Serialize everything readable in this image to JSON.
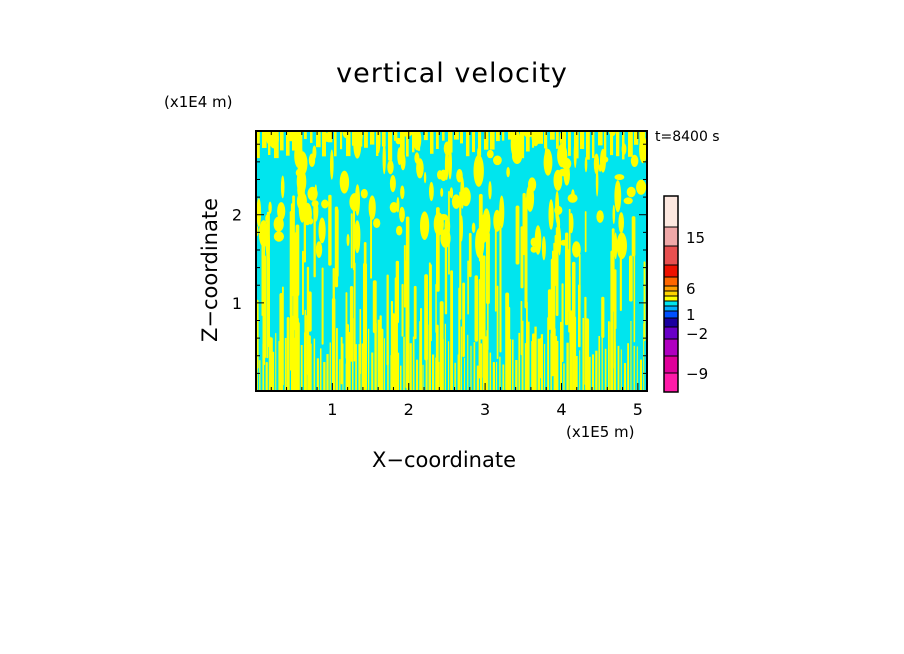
{
  "colors": {
    "background": "#ffffff",
    "positive_band": "#ffff00",
    "negative_band": "#00e5ee",
    "axis": "#000000"
  },
  "chart_data": {
    "type": "heatmap",
    "title": "vertical velocity",
    "xlabel": "X−coordinate",
    "ylabel": "Z−coordinate",
    "x_unit_label": "(x1E5 m)",
    "y_unit_label": "(x1E4 m)",
    "annotation": "t=8400 s",
    "xlim": [
      0,
      5.12
    ],
    "ylim": [
      0,
      2.95
    ],
    "x_ticks": [
      1,
      2,
      3,
      4,
      5
    ],
    "x_tick_labels": [
      "1",
      "2",
      "3",
      "4",
      "5"
    ],
    "y_ticks": [
      1,
      2
    ],
    "y_tick_labels": [
      "1",
      "2"
    ],
    "field_description": "Dominant cyan (slightly negative) field with dense yellow (slightly positive) vertical plumes, narrower near the surface",
    "colorbar": {
      "bands": [
        {
          "color": "#ff1aa8"
        },
        {
          "color": "#e0009a"
        },
        {
          "color": "#b000c0"
        },
        {
          "color": "#6a00c8"
        },
        {
          "color": "#1a00a0"
        },
        {
          "color": "#0050ff"
        },
        {
          "color": "#00b0ff"
        },
        {
          "color": "#00e5ee"
        },
        {
          "color": "#ffff00"
        },
        {
          "color": "#ffd400"
        },
        {
          "color": "#ffa000"
        },
        {
          "color": "#ff6600"
        },
        {
          "color": "#ee1100"
        },
        {
          "color": "#e85050"
        },
        {
          "color": "#f0a8a8"
        },
        {
          "color": "#fde8e0"
        }
      ],
      "tick_labels": [
        {
          "value": "−9"
        },
        {
          "value": "−2"
        },
        {
          "value": "1"
        },
        {
          "value": "6"
        },
        {
          "value": "15"
        }
      ]
    }
  }
}
